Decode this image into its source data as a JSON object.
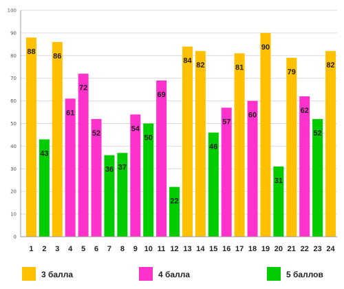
{
  "chart_data": {
    "type": "bar",
    "categories": [
      "1",
      "2",
      "3",
      "4",
      "5",
      "6",
      "7",
      "8",
      "9",
      "10",
      "11",
      "12",
      "13",
      "14",
      "15",
      "16",
      "17",
      "18",
      "19",
      "20",
      "21",
      "22",
      "23",
      "24"
    ],
    "values": [
      88,
      43,
      86,
      61,
      72,
      52,
      36,
      37,
      54,
      50,
      69,
      22,
      84,
      82,
      46,
      57,
      81,
      60,
      90,
      31,
      79,
      62,
      52,
      82
    ],
    "groups": [
      "3 балла",
      "5 баллов",
      "3 балла",
      "4 балла",
      "4 балла",
      "4 балла",
      "5 баллов",
      "5 баллов",
      "4 балла",
      "5 баллов",
      "4 балла",
      "5 баллов",
      "3 балла",
      "3 балла",
      "5 баллов",
      "4 балла",
      "3 балла",
      "4 балла",
      "3 балла",
      "5 баллов",
      "3 балла",
      "4 балла",
      "5 баллов",
      "3 балла"
    ],
    "legend": [
      {
        "name": "3 балла",
        "color": "#FFC000"
      },
      {
        "name": "4 балла",
        "color": "#FF33CC"
      },
      {
        "name": "5 баллов",
        "color": "#00CC00"
      }
    ],
    "ylim": [
      0,
      100
    ],
    "yticks": [
      0,
      10,
      20,
      30,
      40,
      50,
      60,
      70,
      80,
      90,
      100
    ],
    "grid": true,
    "legend_placement": "bottom"
  }
}
